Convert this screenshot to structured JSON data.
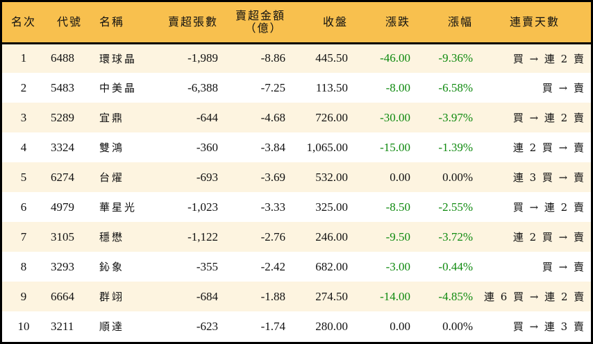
{
  "table": {
    "columns": [
      "名次",
      "代號",
      "名稱",
      "賣超張數",
      "賣超金額",
      "（億）",
      "收盤",
      "漲跌",
      "漲幅",
      "連賣天數"
    ],
    "colors": {
      "header_bg": "#F8C04E",
      "odd_row_bg": "#FDF4E0",
      "even_row_bg": "#FFFFFF",
      "negative": "#0F8A0F",
      "border": "#000000"
    },
    "rows": [
      {
        "rank": "1",
        "code": "6488",
        "name": "環球晶",
        "net_sell_lots": "-1,989",
        "net_sell_amount": "-8.86",
        "close": "445.50",
        "change": "-46.00",
        "change_pct": "-9.36%",
        "streak": "買 → 連 2 賣",
        "negative": true
      },
      {
        "rank": "2",
        "code": "5483",
        "name": "中美晶",
        "net_sell_lots": "-6,388",
        "net_sell_amount": "-7.25",
        "close": "113.50",
        "change": "-8.00",
        "change_pct": "-6.58%",
        "streak": "買 → 賣",
        "negative": true
      },
      {
        "rank": "3",
        "code": "5289",
        "name": "宜鼎",
        "net_sell_lots": "-644",
        "net_sell_amount": "-4.68",
        "close": "726.00",
        "change": "-30.00",
        "change_pct": "-3.97%",
        "streak": "買 → 連 2 賣",
        "negative": true
      },
      {
        "rank": "4",
        "code": "3324",
        "name": "雙鴻",
        "net_sell_lots": "-360",
        "net_sell_amount": "-3.84",
        "close": "1,065.00",
        "change": "-15.00",
        "change_pct": "-1.39%",
        "streak": "連 2 買 → 賣",
        "negative": true
      },
      {
        "rank": "5",
        "code": "6274",
        "name": "台燿",
        "net_sell_lots": "-693",
        "net_sell_amount": "-3.69",
        "close": "532.00",
        "change": "0.00",
        "change_pct": "0.00%",
        "streak": "連 3 買 → 賣",
        "negative": false
      },
      {
        "rank": "6",
        "code": "4979",
        "name": "華星光",
        "net_sell_lots": "-1,023",
        "net_sell_amount": "-3.33",
        "close": "325.00",
        "change": "-8.50",
        "change_pct": "-2.55%",
        "streak": "買 → 連 2 賣",
        "negative": true
      },
      {
        "rank": "7",
        "code": "3105",
        "name": "穩懋",
        "net_sell_lots": "-1,122",
        "net_sell_amount": "-2.76",
        "close": "246.00",
        "change": "-9.50",
        "change_pct": "-3.72%",
        "streak": "連 2 買 → 賣",
        "negative": true
      },
      {
        "rank": "8",
        "code": "3293",
        "name": "鈊象",
        "net_sell_lots": "-355",
        "net_sell_amount": "-2.42",
        "close": "682.00",
        "change": "-3.00",
        "change_pct": "-0.44%",
        "streak": "買 → 賣",
        "negative": true
      },
      {
        "rank": "9",
        "code": "6664",
        "name": "群翊",
        "net_sell_lots": "-684",
        "net_sell_amount": "-1.88",
        "close": "274.50",
        "change": "-14.00",
        "change_pct": "-4.85%",
        "streak": "連 6 買 → 連 2 賣",
        "negative": true
      },
      {
        "rank": "10",
        "code": "3211",
        "name": "順達",
        "net_sell_lots": "-623",
        "net_sell_amount": "-1.74",
        "close": "280.00",
        "change": "0.00",
        "change_pct": "0.00%",
        "streak": "買 → 連 3 賣",
        "negative": false
      }
    ]
  }
}
